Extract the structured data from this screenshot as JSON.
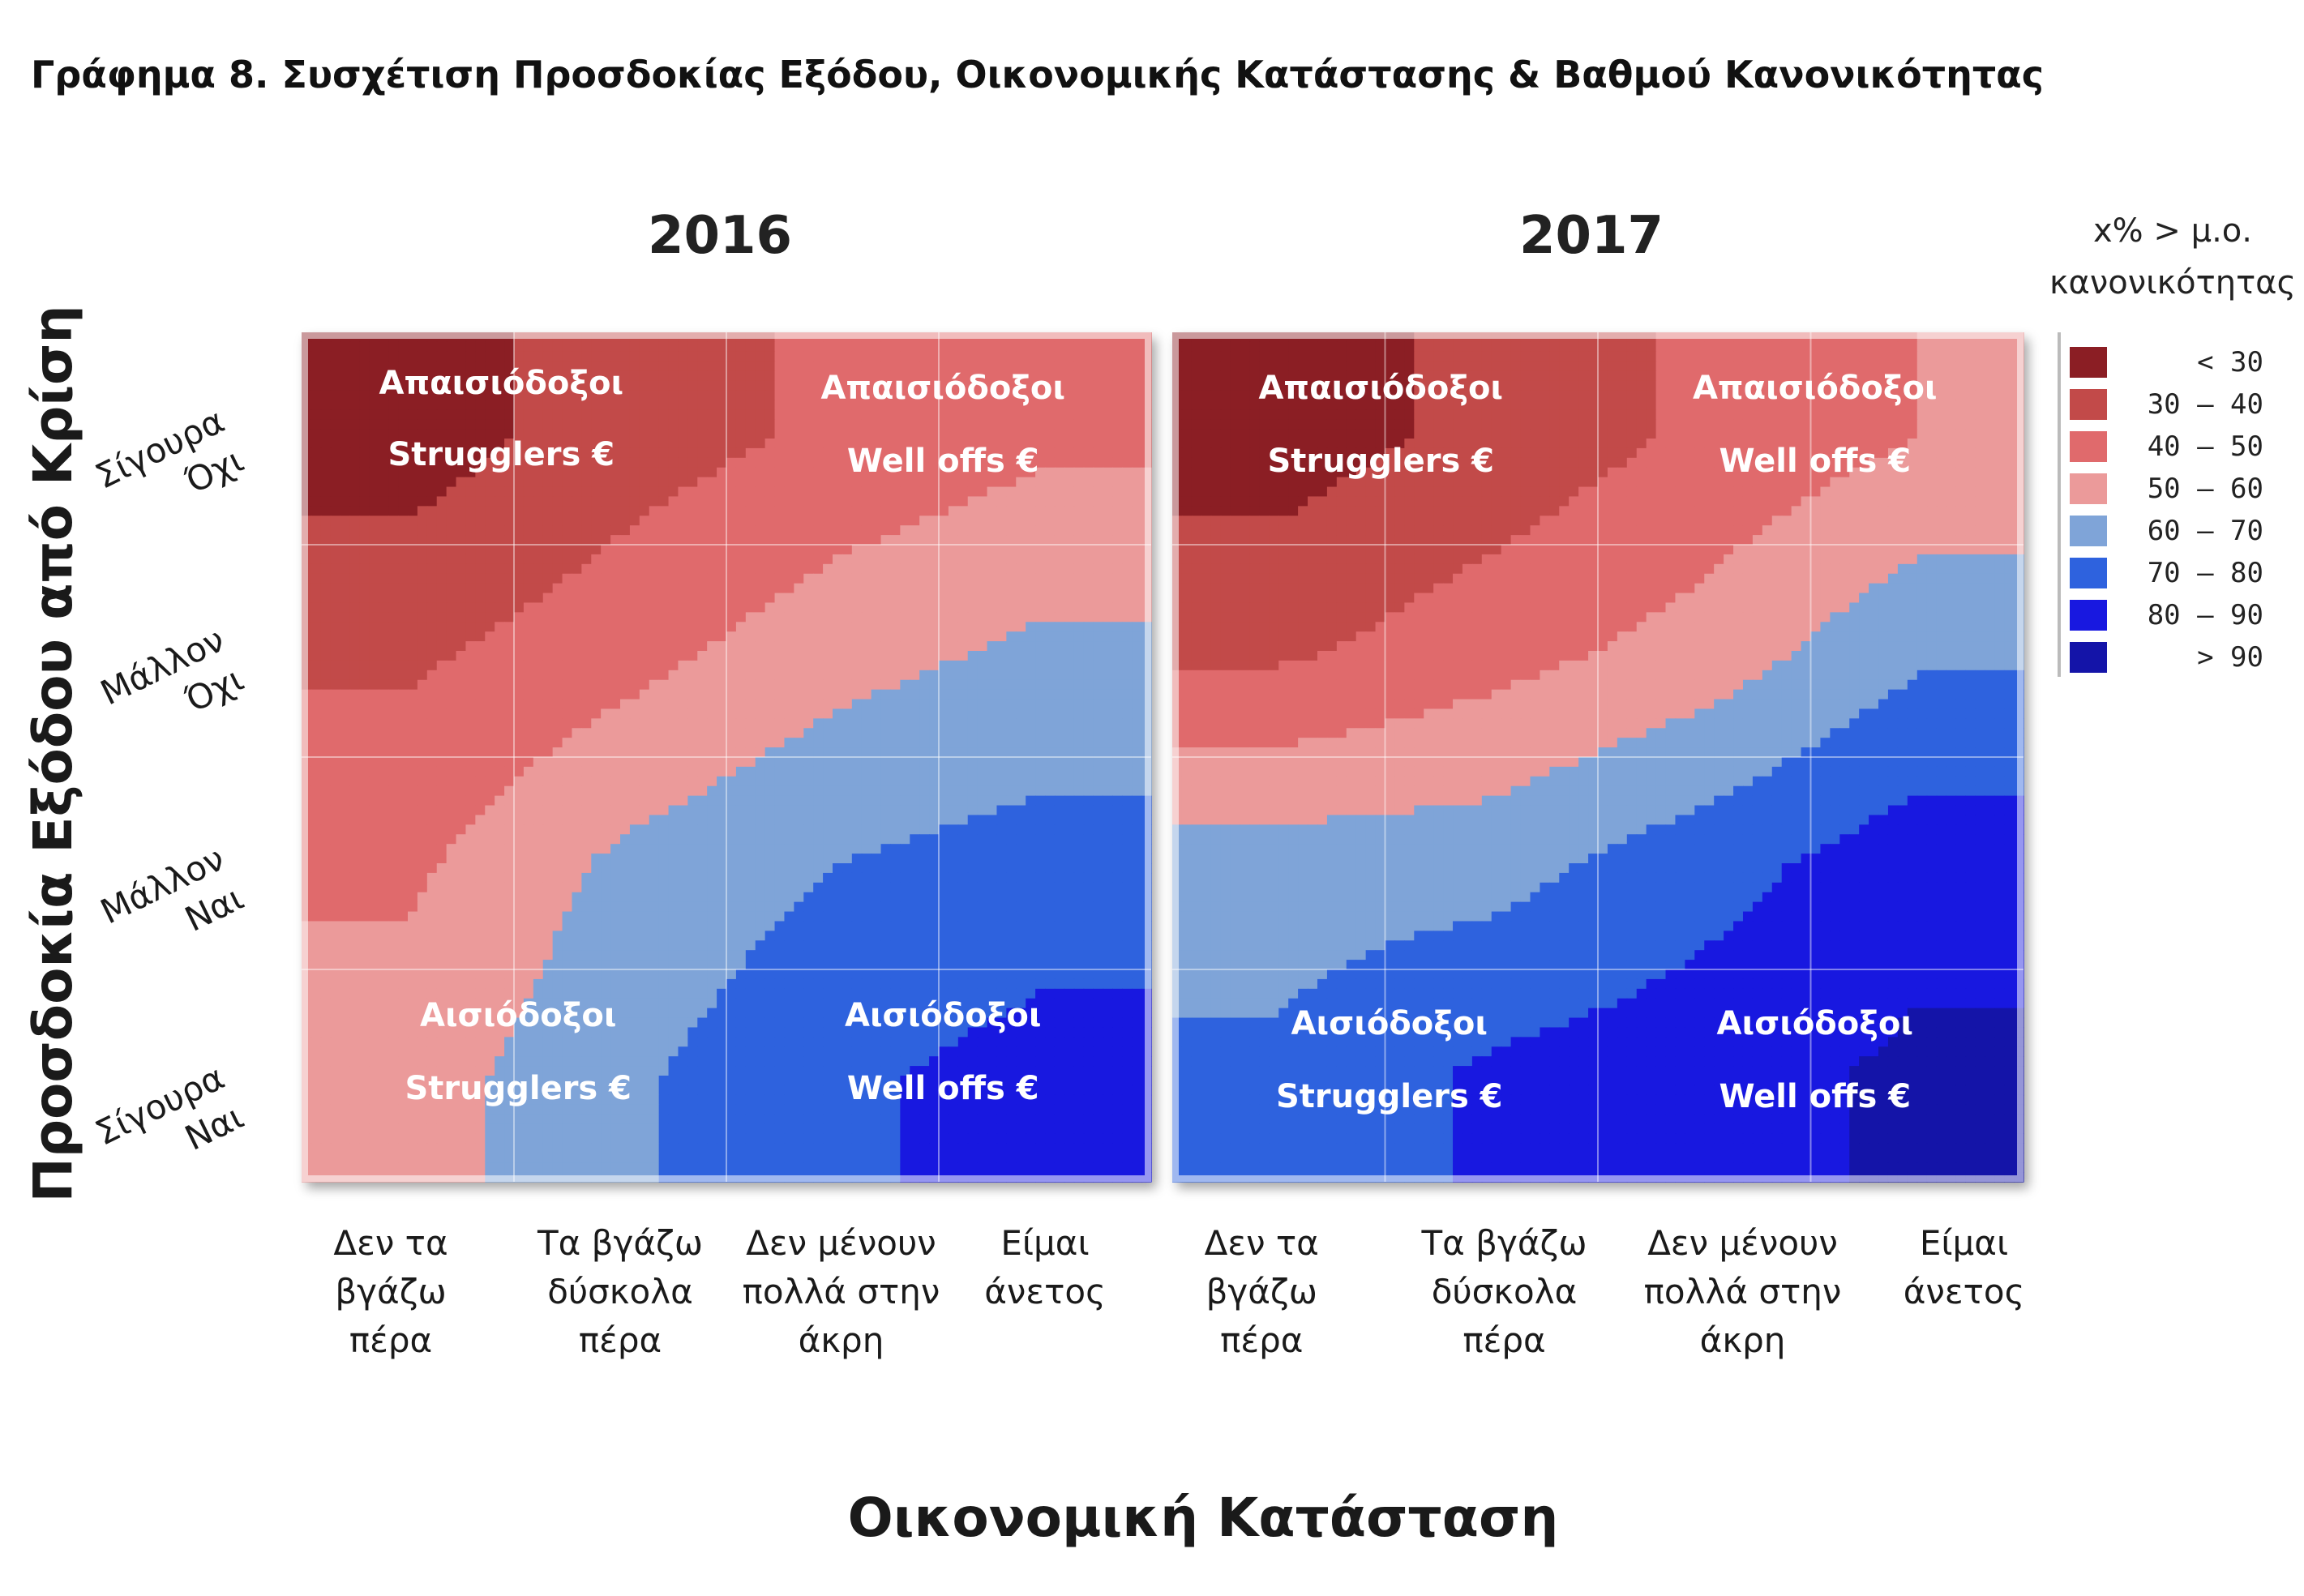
{
  "title": "Γράφημα 8. Συσχέτιση Προσδοκίας Εξόδου, Οικονομικής Κατάστασης & Βαθμού Κανονικότητας",
  "chart_data": {
    "type": "heatmap",
    "xlabel": "Οικονομική Κατάσταση",
    "ylabel": "Προσδοκία Εξόδου από Κρίση",
    "x_categories": [
      [
        "Δεν τα",
        "βγάζω",
        "πέρα"
      ],
      [
        "Τα βγάζω",
        "δύσκολα",
        "πέρα"
      ],
      [
        "Δεν μένουν",
        "πολλά στην",
        "άκρη"
      ],
      [
        "Είμαι",
        "άνετος"
      ]
    ],
    "y_categories": [
      [
        "Σίγουρα",
        "Όχι"
      ],
      [
        "Μάλλον",
        "Όχι"
      ],
      [
        "Μάλλον",
        "Ναι"
      ],
      [
        "Σίγουρα",
        "Ναι"
      ]
    ],
    "legend": {
      "title": [
        "x% > μ.ο.",
        "κανονικότητας"
      ],
      "placement": "right",
      "bins": [
        {
          "label": "< 30",
          "color": "#8b1e24"
        },
        {
          "label": "30 – 40",
          "color": "#c24a49"
        },
        {
          "label": "40 – 50",
          "color": "#e06a6c"
        },
        {
          "label": "50 – 60",
          "color": "#eb9a9a"
        },
        {
          "label": "60 – 70",
          "color": "#7fa4d8"
        },
        {
          "label": "70 – 80",
          "color": "#2e62de"
        },
        {
          "label": "80 – 90",
          "color": "#1818e0"
        },
        {
          "label": "> 90",
          "color": "#1414a8"
        }
      ]
    },
    "panels": [
      {
        "year": "2016",
        "quadrant_labels": [
          {
            "line1": "Απαισιόδοξοι",
            "line2": "Strugglers €"
          },
          {
            "line1": "Απαισιόδοξοι",
            "line2": "Well offs €"
          },
          {
            "line1": "Αισιόδοξοι",
            "line2": "Strugglers €"
          },
          {
            "line1": "Αισιόδοξοι",
            "line2": "Well offs €"
          }
        ],
        "values": [
          [
            25,
            35,
            42,
            48
          ],
          [
            38,
            46,
            56,
            62
          ],
          [
            48,
            62,
            70,
            74
          ],
          [
            55,
            68,
            78,
            84
          ]
        ]
      },
      {
        "year": "2017",
        "quadrant_labels": [
          {
            "line1": "Απαισιόδοξοι",
            "line2": "Strugglers €"
          },
          {
            "line1": "Απαισιόδοξοι",
            "line2": "Well offs €"
          },
          {
            "line1": "Αισιόδοξοι",
            "line2": "Strugglers €"
          },
          {
            "line1": "Αισιόδοξοι",
            "line2": "Well offs €"
          }
        ],
        "values": [
          [
            25,
            33,
            42,
            50
          ],
          [
            38,
            46,
            54,
            68
          ],
          [
            65,
            66,
            76,
            86
          ],
          [
            72,
            82,
            86,
            92
          ]
        ]
      }
    ]
  }
}
